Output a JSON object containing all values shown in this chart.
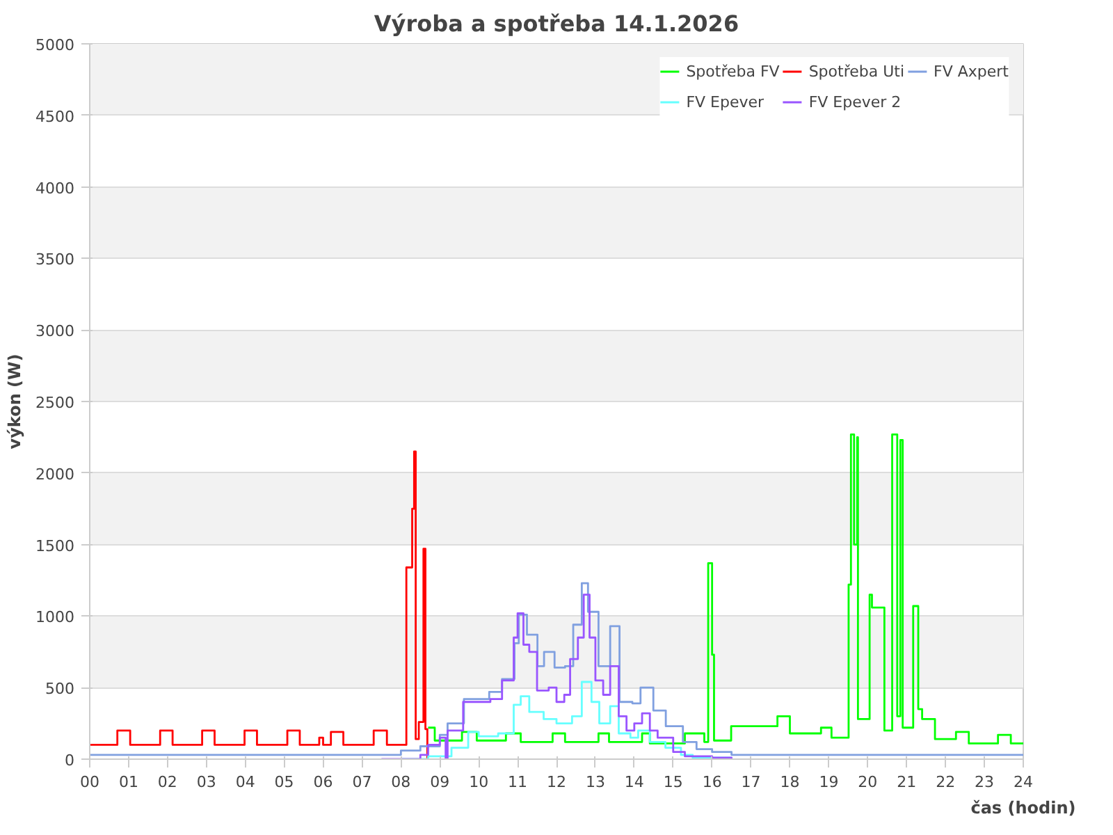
{
  "chart_data": {
    "type": "step",
    "title": "Výroba a spotřeba 14.1.2026",
    "xlabel": "čas (hodin)",
    "ylabel": "výkon (W)",
    "xlim": [
      0,
      24
    ],
    "ylim": [
      0,
      5000
    ],
    "xticks": [
      {
        "value": 0,
        "label": "00"
      },
      {
        "value": 1,
        "label": "01"
      },
      {
        "value": 2,
        "label": "02"
      },
      {
        "value": 3,
        "label": "03"
      },
      {
        "value": 4,
        "label": "04"
      },
      {
        "value": 5,
        "label": "05"
      },
      {
        "value": 6,
        "label": "06"
      },
      {
        "value": 7,
        "label": "07"
      },
      {
        "value": 8,
        "label": "08"
      },
      {
        "value": 9,
        "label": "09"
      },
      10,
      11,
      12,
      13,
      14,
      15,
      16,
      17,
      18,
      19,
      20,
      21,
      22,
      23,
      24
    ],
    "yticks": [
      0,
      500,
      1000,
      1500,
      2000,
      2500,
      3000,
      3500,
      4000,
      4500,
      5000
    ],
    "grid": "y",
    "legend": "top right",
    "marker": "none",
    "line_style": "solid",
    "series": [
      {
        "name": "Spotřeba FV",
        "color": "#00ff00",
        "x": [
          8.7,
          8.87,
          9.57,
          9.95,
          10.7,
          11.08,
          11.9,
          12.22,
          13.08,
          13.35,
          14.2,
          14.4,
          15.3,
          15.8,
          15.9,
          16.0,
          16.05,
          16.49,
          17.68,
          18.0,
          18.8,
          19.07,
          19.51,
          19.57,
          19.65,
          19.73,
          19.75,
          20.05,
          20.11,
          20.43,
          20.63,
          20.76,
          20.84,
          20.9,
          21.17,
          21.3,
          21.4,
          21.73,
          22.27,
          22.6,
          23.35,
          23.68,
          24
        ],
        "values": [
          220,
          130,
          190,
          130,
          180,
          120,
          180,
          120,
          180,
          120,
          180,
          110,
          180,
          120,
          1370,
          730,
          130,
          230,
          300,
          180,
          220,
          150,
          1220,
          2270,
          1500,
          2250,
          280,
          1150,
          1060,
          200,
          2270,
          300,
          2230,
          220,
          1070,
          350,
          280,
          140,
          190,
          110,
          170,
          110,
          110
        ]
      },
      {
        "name": "Spotřeba Uti",
        "color": "#ff0000",
        "x": [
          0,
          0.71,
          1.04,
          1.81,
          2.13,
          2.89,
          3.21,
          3.98,
          4.3,
          5.08,
          5.4,
          5.9,
          6.0,
          6.2,
          6.52,
          7.3,
          7.64,
          8.14,
          8.29,
          8.34,
          8.38,
          8.46,
          8.58,
          8.63,
          8.68
        ],
        "values": [
          100,
          200,
          100,
          200,
          100,
          200,
          100,
          200,
          100,
          200,
          100,
          150,
          100,
          190,
          100,
          200,
          100,
          1340,
          1750,
          2150,
          140,
          260,
          1470,
          210,
          0
        ]
      },
      {
        "name": "FV Axpert",
        "color": "#80a0e0",
        "x": [
          0,
          7.5,
          8.0,
          8.5,
          9.0,
          9.2,
          9.62,
          10.27,
          10.6,
          10.92,
          11.03,
          11.24,
          11.51,
          11.68,
          11.95,
          12.22,
          12.43,
          12.65,
          12.81,
          13.08,
          13.38,
          13.62,
          13.95,
          14.16,
          14.49,
          14.81,
          15.25,
          15.6,
          16.0,
          16.5,
          24
        ],
        "values": [
          30,
          30,
          60,
          90,
          170,
          250,
          420,
          470,
          560,
          810,
          1010,
          870,
          650,
          750,
          640,
          650,
          940,
          1230,
          1030,
          650,
          930,
          400,
          390,
          500,
          340,
          230,
          120,
          70,
          50,
          30,
          30
        ]
      },
      {
        "name": "FV Epever",
        "color": "#66ffff",
        "x": [
          8.0,
          8.7,
          9.3,
          9.73,
          10.0,
          10.5,
          10.9,
          11.08,
          11.3,
          11.67,
          12.0,
          12.4,
          12.65,
          12.9,
          13.1,
          13.38,
          13.6,
          13.9,
          14.1,
          14.4,
          14.8,
          15.2,
          15.5,
          16.5
        ],
        "values": [
          0,
          20,
          80,
          190,
          160,
          180,
          380,
          440,
          330,
          280,
          250,
          300,
          540,
          400,
          250,
          370,
          180,
          150,
          200,
          120,
          80,
          30,
          10,
          10
        ]
      },
      {
        "name": "FV Epever 2",
        "color": "#9955ff",
        "x": [
          7.5,
          8.5,
          8.7,
          9.0,
          9.15,
          9.2,
          9.6,
          10.0,
          10.3,
          10.6,
          10.9,
          11.0,
          11.15,
          11.3,
          11.5,
          11.8,
          12.0,
          12.2,
          12.35,
          12.55,
          12.7,
          12.85,
          13.0,
          13.2,
          13.38,
          13.6,
          13.8,
          14.0,
          14.2,
          14.4,
          14.6,
          15.0,
          15.3,
          16.0,
          16.5
        ],
        "values": [
          0,
          30,
          100,
          150,
          0,
          200,
          400,
          400,
          420,
          550,
          850,
          1020,
          800,
          750,
          480,
          500,
          400,
          450,
          700,
          850,
          1150,
          850,
          550,
          450,
          650,
          300,
          200,
          250,
          320,
          200,
          150,
          50,
          20,
          10,
          0
        ]
      }
    ]
  }
}
